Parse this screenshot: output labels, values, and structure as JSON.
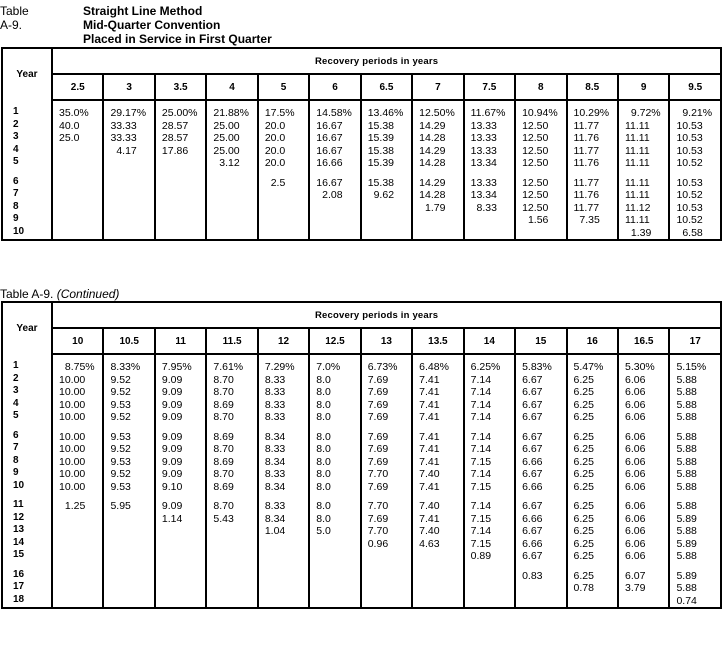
{
  "table1": {
    "label": "Table A-9.",
    "title_lines": [
      "Straight Line Method",
      "Mid-Quarter Convention",
      "Placed in Service in First Quarter"
    ],
    "year_header": "Year",
    "group_header": "Recovery periods in  years",
    "columns": [
      "2.5",
      "3",
      "3.5",
      "4",
      "5",
      "6",
      "6.5",
      "7",
      "7.5",
      "8",
      "8.5",
      "9",
      "9.5"
    ],
    "rows": [
      {
        "year": "1",
        "values": [
          "35.0%",
          "29.17%",
          "25.00%",
          "21.88%",
          "17.5%",
          "14.58%",
          "13.46%",
          "12.50%",
          "11.67%",
          "10.94%",
          "10.29%",
          "9.72%",
          "9.21%"
        ]
      },
      {
        "year": "2",
        "values": [
          "40.0",
          "33.33",
          "28.57",
          "25.00",
          "20.0",
          "16.67",
          "15.38",
          "14.29",
          "13.33",
          "12.50",
          "11.77",
          "11.11",
          "10.53"
        ]
      },
      {
        "year": "3",
        "values": [
          "25.0",
          "33.33",
          "28.57",
          "25.00",
          "20.0",
          "16.67",
          "15.39",
          "14.28",
          "13.33",
          "12.50",
          "11.76",
          "11.11",
          "10.53"
        ]
      },
      {
        "year": "4",
        "values": [
          "",
          "4.17",
          "17.86",
          "25.00",
          "20.0",
          "16.67",
          "15.38",
          "14.29",
          "13.33",
          "12.50",
          "11.77",
          "11.11",
          "10.53"
        ]
      },
      {
        "year": "5",
        "values": [
          "",
          "",
          "",
          "3.12",
          "20.0",
          "16.66",
          "15.39",
          "14.28",
          "13.34",
          "12.50",
          "11.76",
          "11.11",
          "10.52"
        ]
      },
      {
        "year": "6",
        "values": [
          "",
          "",
          "",
          "",
          "2.5",
          "16.67",
          "15.38",
          "14.29",
          "13.33",
          "12.50",
          "11.77",
          "11.11",
          "10.53"
        ]
      },
      {
        "year": "7",
        "values": [
          "",
          "",
          "",
          "",
          "",
          "2.08",
          "9.62",
          "14.28",
          "13.34",
          "12.50",
          "11.76",
          "11.11",
          "10.52"
        ]
      },
      {
        "year": "8",
        "values": [
          "",
          "",
          "",
          "",
          "",
          "",
          "",
          "1.79",
          "8.33",
          "12.50",
          "11.77",
          "11.12",
          "10.53"
        ]
      },
      {
        "year": "9",
        "values": [
          "",
          "",
          "",
          "",
          "",
          "",
          "",
          "",
          "",
          "1.56",
          "7.35",
          "11.11",
          "10.52"
        ]
      },
      {
        "year": "10",
        "values": [
          "",
          "",
          "",
          "",
          "",
          "",
          "",
          "",
          "",
          "",
          "",
          "1.39",
          "6.58"
        ]
      }
    ]
  },
  "table2": {
    "label": "Table A-9.",
    "continued": "(Continued)",
    "year_header": "Year",
    "group_header": "Recovery periods in  years",
    "columns": [
      "10",
      "10.5",
      "11",
      "11.5",
      "12",
      "12.5",
      "13",
      "13.5",
      "14",
      "15",
      "16",
      "16.5",
      "17"
    ],
    "rows": [
      {
        "year": "1",
        "values": [
          "8.75%",
          "8.33%",
          "7.95%",
          "7.61%",
          "7.29%",
          "7.0%",
          "6.73%",
          "6.48%",
          "6.25%",
          "5.83%",
          "5.47%",
          "5.30%",
          "5.15%"
        ]
      },
      {
        "year": "2",
        "values": [
          "10.00",
          "9.52",
          "9.09",
          "8.70",
          "8.33",
          "8.0",
          "7.69",
          "7.41",
          "7.14",
          "6.67",
          "6.25",
          "6.06",
          "5.88"
        ]
      },
      {
        "year": "3",
        "values": [
          "10.00",
          "9.52",
          "9.09",
          "8.70",
          "8.33",
          "8.0",
          "7.69",
          "7.41",
          "7.14",
          "6.67",
          "6.25",
          "6.06",
          "5.88"
        ]
      },
      {
        "year": "4",
        "values": [
          "10.00",
          "9.53",
          "9.09",
          "8.69",
          "8.33",
          "8.0",
          "7.69",
          "7.41",
          "7.14",
          "6.67",
          "6.25",
          "6.06",
          "5.88"
        ]
      },
      {
        "year": "5",
        "values": [
          "10.00",
          "9.52",
          "9.09",
          "8.70",
          "8.33",
          "8.0",
          "7.69",
          "7.41",
          "7.14",
          "6.67",
          "6.25",
          "6.06",
          "5.88"
        ]
      },
      {
        "year": "6",
        "values": [
          "10.00",
          "9.53",
          "9.09",
          "8.69",
          "8.34",
          "8.0",
          "7.69",
          "7.41",
          "7.14",
          "6.67",
          "6.25",
          "6.06",
          "5.88"
        ]
      },
      {
        "year": "7",
        "values": [
          "10.00",
          "9.52",
          "9.09",
          "8.70",
          "8.33",
          "8.0",
          "7.69",
          "7.41",
          "7.14",
          "6.67",
          "6.25",
          "6.06",
          "5.88"
        ]
      },
      {
        "year": "8",
        "values": [
          "10.00",
          "9.53",
          "9.09",
          "8.69",
          "8.34",
          "8.0",
          "7.69",
          "7.41",
          "7.15",
          "6.66",
          "6.25",
          "6.06",
          "5.88"
        ]
      },
      {
        "year": "9",
        "values": [
          "10.00",
          "9.52",
          "9.09",
          "8.70",
          "8.33",
          "8.0",
          "7.70",
          "7.40",
          "7.14",
          "6.67",
          "6.25",
          "6.06",
          "5.88"
        ]
      },
      {
        "year": "10",
        "values": [
          "10.00",
          "9.53",
          "9.10",
          "8.69",
          "8.34",
          "8.0",
          "7.69",
          "7.41",
          "7.15",
          "6.66",
          "6.25",
          "6.06",
          "5.88"
        ]
      },
      {
        "year": "11",
        "values": [
          "1.25",
          "5.95",
          "9.09",
          "8.70",
          "8.33",
          "8.0",
          "7.70",
          "7.40",
          "7.14",
          "6.67",
          "6.25",
          "6.06",
          "5.88"
        ]
      },
      {
        "year": "12",
        "values": [
          "",
          "",
          "1.14",
          "5.43",
          "8.34",
          "8.0",
          "7.69",
          "7.41",
          "7.15",
          "6.66",
          "6.25",
          "6.06",
          "5.89"
        ]
      },
      {
        "year": "13",
        "values": [
          "",
          "",
          "",
          "",
          "1.04",
          "5.0",
          "7.70",
          "7.40",
          "7.14",
          "6.67",
          "6.25",
          "6.06",
          "5.88"
        ]
      },
      {
        "year": "14",
        "values": [
          "",
          "",
          "",
          "",
          "",
          "",
          "0.96",
          "4.63",
          "7.15",
          "6.66",
          "6.25",
          "6.06",
          "5.89"
        ]
      },
      {
        "year": "15",
        "values": [
          "",
          "",
          "",
          "",
          "",
          "",
          "",
          "",
          "0.89",
          "6.67",
          "6.25",
          "6.06",
          "5.88"
        ]
      },
      {
        "year": "16",
        "values": [
          "",
          "",
          "",
          "",
          "",
          "",
          "",
          "",
          "",
          "0.83",
          "6.25",
          "6.07",
          "5.89"
        ]
      },
      {
        "year": "17",
        "values": [
          "",
          "",
          "",
          "",
          "",
          "",
          "",
          "",
          "",
          "",
          "0.78",
          "3.79",
          "5.88"
        ]
      },
      {
        "year": "18",
        "values": [
          "",
          "",
          "",
          "",
          "",
          "",
          "",
          "",
          "",
          "",
          "",
          "",
          "0.74"
        ]
      }
    ]
  }
}
